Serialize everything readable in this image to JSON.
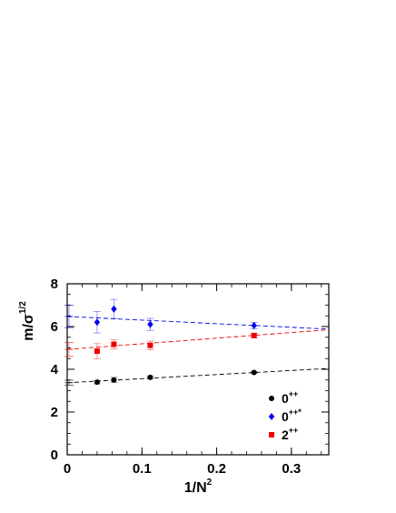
{
  "chart_data": {
    "type": "scatter",
    "x_axis": {
      "label_main": "1/N",
      "label_sup": "2",
      "range": [
        0,
        0.35
      ],
      "ticks": [
        "0",
        "0.1",
        "0.2",
        "0.3"
      ]
    },
    "y_axis": {
      "label_main": "m/σ",
      "label_sup": "1/2",
      "range": [
        0,
        8
      ],
      "ticks": [
        "0",
        "2",
        "4",
        "6",
        "8"
      ]
    },
    "grid": false,
    "legend_position": "bottom-right",
    "series": [
      {
        "label_main": "0",
        "label_sup": "++",
        "color": "#000000",
        "marker": "circle",
        "points": [
          {
            "x": 0.04,
            "y": 3.4,
            "err": 0.08
          },
          {
            "x": 0.0625,
            "y": 3.5,
            "err": 0.12
          },
          {
            "x": 0.1111,
            "y": 3.62,
            "err": 0.06
          },
          {
            "x": 0.25,
            "y": 3.85,
            "err": 0.05
          }
        ],
        "extrapolation": [
          3.37,
          4.04
        ],
        "extrap_marks": [
          3.37,
          3.25,
          3.49
        ]
      },
      {
        "label_main": "0",
        "label_sup": "++*",
        "color": "#0000ee",
        "marker": "diamond",
        "points": [
          {
            "x": 0.04,
            "y": 6.2,
            "err": 0.5
          },
          {
            "x": 0.0625,
            "y": 6.82,
            "err": 0.45
          },
          {
            "x": 0.1111,
            "y": 6.1,
            "err": 0.28
          },
          {
            "x": 0.25,
            "y": 6.05,
            "err": 0.15
          }
        ],
        "extrapolation": [
          6.47,
          5.88
        ],
        "extrap_marks": [
          6.47,
          5.95,
          7.0
        ]
      },
      {
        "label_main": "2",
        "label_sup": "++",
        "color": "#ee0000",
        "marker": "square",
        "points": [
          {
            "x": 0.04,
            "y": 4.85,
            "err": 0.35
          },
          {
            "x": 0.0625,
            "y": 5.17,
            "err": 0.22
          },
          {
            "x": 0.1111,
            "y": 5.12,
            "err": 0.2
          },
          {
            "x": 0.25,
            "y": 5.58,
            "err": 0.1
          }
        ],
        "extrapolation": [
          4.93,
          5.85
        ],
        "extrap_marks": [
          4.93,
          4.6,
          5.26
        ]
      }
    ]
  }
}
